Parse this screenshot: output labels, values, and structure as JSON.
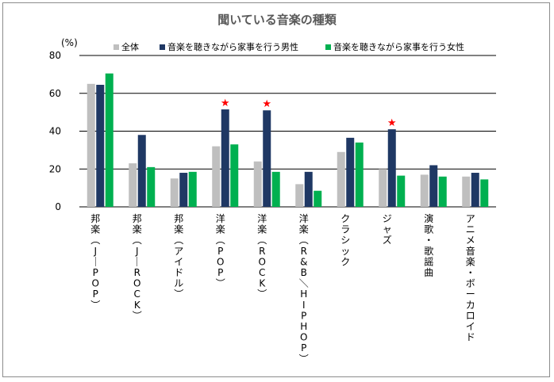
{
  "chart_data": {
    "type": "bar",
    "title": "聞いている音楽の種類",
    "unit_label": "(%)",
    "ylim": [
      0,
      80
    ],
    "yticks": [
      0,
      20,
      40,
      60,
      80
    ],
    "grid": true,
    "legend_position": "top",
    "categories": [
      "邦楽（J-POP）",
      "邦楽（J-ROCK）",
      "邦楽（アイドル）",
      "洋楽（POP）",
      "洋楽（ROCK）",
      "洋楽（R&B／HIPHOP）",
      "クラシック",
      "ジャズ",
      "演歌・歌謡曲",
      "アニメ音楽・ボーカロイド"
    ],
    "series": [
      {
        "name": "全体",
        "color": "#bfbfbf",
        "values": [
          65,
          23,
          15,
          32,
          24,
          12,
          29,
          20,
          17,
          16
        ]
      },
      {
        "name": "音楽を聴きながら家事を行う男性",
        "color": "#1f3864",
        "values": [
          64.5,
          38,
          18,
          51.5,
          51,
          18.5,
          36.5,
          41,
          22,
          18
        ]
      },
      {
        "name": "音楽を聴きながら家事を行う女性",
        "color": "#00b050",
        "values": [
          70.5,
          21,
          18.5,
          33,
          18.5,
          8.5,
          34,
          16.5,
          16,
          14.5
        ]
      }
    ],
    "star_markers": [
      {
        "category_index": 3,
        "series_index": 1,
        "symbol": "★",
        "color": "#ff0000"
      },
      {
        "category_index": 4,
        "series_index": 1,
        "symbol": "★",
        "color": "#ff0000"
      },
      {
        "category_index": 7,
        "series_index": 1,
        "symbol": "★",
        "color": "#ff0000"
      }
    ]
  }
}
